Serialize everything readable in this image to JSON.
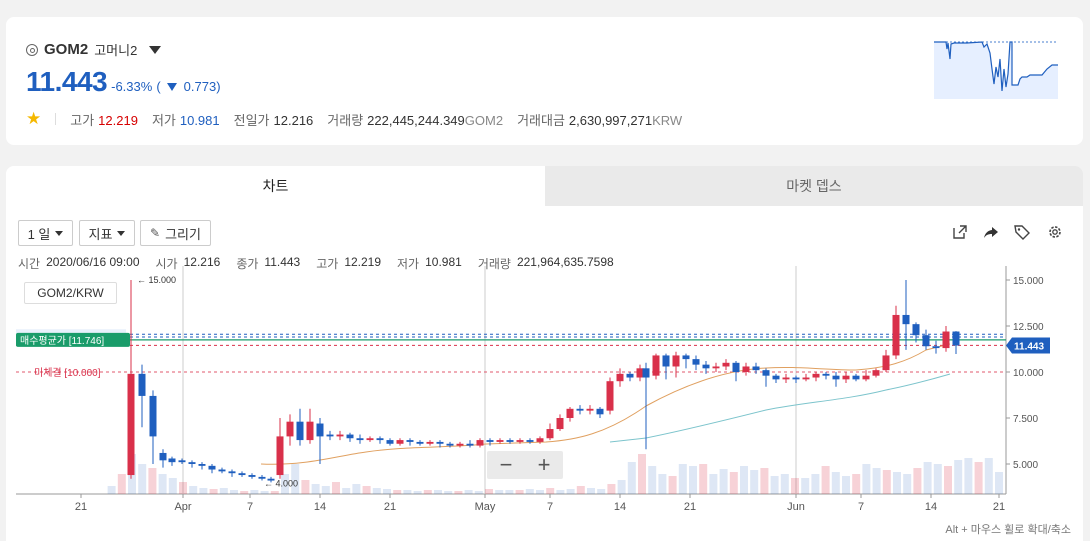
{
  "header": {
    "symbol": "GOM2",
    "name": "고머니2",
    "price": "11.443",
    "change_pct": "-6.33%",
    "change_open": "(",
    "change_abs": "0.773)",
    "high_label": "고가",
    "high": "12.219",
    "low_label": "저가",
    "low": "10.981",
    "prev_label": "전일가",
    "prev": "12.216",
    "volume_label": "거래량",
    "volume": "222,445,244.349",
    "volume_unit": "GOM2",
    "amount_label": "거래대금",
    "amount": "2,630,997,271",
    "amount_unit": "KRW"
  },
  "tabs": {
    "chart": "차트",
    "depth": "마켓 뎁스"
  },
  "toolbar": {
    "interval": "1 일",
    "indicator": "지표",
    "draw": "그리기"
  },
  "ohlc": {
    "time_label": "시간",
    "time": "2020/06/16 09:00",
    "open_label": "시가",
    "open": "12.216",
    "close_label": "종가",
    "close": "11.443",
    "high_label": "고가",
    "high": "12.219",
    "low_label": "저가",
    "low": "10.981",
    "vol_label": "거래량",
    "vol": "221,964,635.7598"
  },
  "pair": "GOM2/KRW",
  "zoom": {
    "minus": "−",
    "plus": "+"
  },
  "hint": "Alt + 마우스 휠로 확대/축소",
  "chart_data": {
    "type": "candlestick",
    "y_ticks": [
      "15.000",
      "12.500",
      "10.000",
      "7.500",
      "5.000"
    ],
    "x_ticks": [
      "21",
      "Apr",
      "7",
      "14",
      "21",
      "May",
      "7",
      "14",
      "21",
      "Jun",
      "7",
      "14",
      "21"
    ],
    "last_price_label": "11.443",
    "avg_label": "매수평균가 [11.746]",
    "pending_label": "미체결 [10.000]",
    "pending_label2": "미체결",
    "max_marker": "← 15.000",
    "min_marker": "← 4.000",
    "colors": {
      "up": "#d9304a",
      "down": "#1f5fbf",
      "ma1": "#e0a060",
      "ma2": "#7cc4cc"
    }
  }
}
